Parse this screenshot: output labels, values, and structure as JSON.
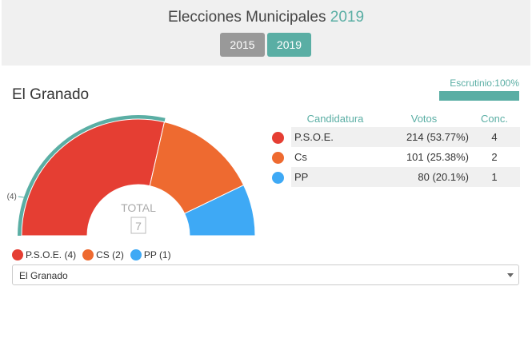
{
  "header": {
    "title": "Elecciones Municipales",
    "title_year": "2019",
    "year_buttons": [
      "2015",
      "2019"
    ]
  },
  "municipality": {
    "name": "El Granado"
  },
  "scrutiny": {
    "label": "Escrutinio:100%",
    "percent": 100
  },
  "table": {
    "headers": {
      "candidature": "Candidatura",
      "votes": "Votos",
      "seats": "Conc."
    },
    "rows": [
      {
        "party": "P.S.O.E.",
        "votes": "214 (53.77%)",
        "seats": "4",
        "color": "#e53e33"
      },
      {
        "party": "Cs",
        "votes": "101 (25.38%)",
        "seats": "2",
        "color": "#ee6a30"
      },
      {
        "party": "PP",
        "votes": "80 (20.1%)",
        "seats": "1",
        "color": "#3ea9f5"
      }
    ]
  },
  "chart_data": {
    "type": "pie",
    "subtype": "half-donut",
    "categories": [
      "P.S.O.E.",
      "CS",
      "PP"
    ],
    "values": [
      4,
      2,
      1
    ],
    "colors": [
      "#e53e33",
      "#ee6a30",
      "#3ea9f5"
    ],
    "highlight_color": "#5aaea4",
    "center_label": "TOTAL",
    "center_value": "7",
    "data_labels": [
      "(4)"
    ],
    "legend": [
      {
        "label": "P.S.O.E. (4)",
        "color": "#e53e33"
      },
      {
        "label": "CS (2)",
        "color": "#ee6a30"
      },
      {
        "label": "PP (1)",
        "color": "#3ea9f5"
      }
    ],
    "legend_position": "bottom-left"
  },
  "selector": {
    "value": "El Granado"
  }
}
